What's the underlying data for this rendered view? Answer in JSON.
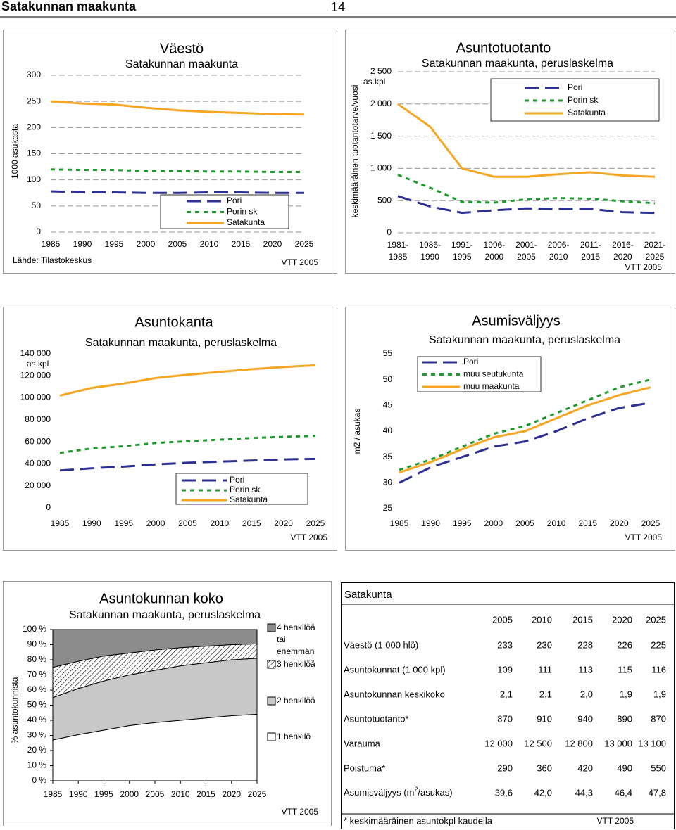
{
  "header": {
    "title": "Satakunnan maakunta",
    "page": 14
  },
  "chart_data": [
    {
      "type": "line",
      "title": "Väestö",
      "subtitle": "Satakunnan maakunta",
      "y_label": "1000 asukasta",
      "source": "Lähde: Tilastokeskus",
      "credit": "VTT 2005",
      "x": [
        1985,
        1990,
        1995,
        2000,
        2005,
        2010,
        2015,
        2020,
        2025
      ],
      "xlim": [
        1985,
        2025
      ],
      "xticks": [
        1985,
        1990,
        1995,
        2000,
        2005,
        2010,
        2015,
        2020,
        2025
      ],
      "ylim": [
        0,
        300
      ],
      "yticks": [
        0,
        50,
        100,
        150,
        200,
        250,
        300
      ],
      "grid": true,
      "legend": "lower right",
      "series": [
        {
          "name": "Pori",
          "color": "#2e3192",
          "dash": "dashed",
          "values": [
            78,
            76,
            76,
            75,
            75,
            76,
            76,
            75,
            75
          ]
        },
        {
          "name": "Porin sk",
          "color": "#1e9a2e",
          "dash": "dotted",
          "values": [
            120,
            119,
            119,
            117,
            117,
            116,
            116,
            115,
            115
          ]
        },
        {
          "name": "Satakunta",
          "color": "#f5a623",
          "dash": "solid",
          "values": [
            250,
            246,
            244,
            238,
            233,
            230,
            228,
            226,
            225
          ]
        }
      ]
    },
    {
      "type": "line",
      "title": "Asuntotuotanto",
      "subtitle": "Satakunnan maakunta, peruslaskelma",
      "y_label": "keskimääräinen tuotantotarve/vuosi",
      "unit": "as.kpl",
      "credit": "VTT 2005",
      "categories": [
        "1981-1985",
        "1986-1990",
        "1991-1995",
        "1996-2000",
        "2001-2005",
        "2006-2010",
        "2011-2015",
        "2016-2020",
        "2021-2025"
      ],
      "ylim": [
        0,
        2500
      ],
      "yticks": [
        0,
        500,
        {
          "value": 1000,
          "label": "1 000"
        },
        {
          "value": 1500,
          "label": "1 500"
        },
        {
          "value": 2000,
          "label": "2 000"
        },
        {
          "value": 2500,
          "label": "2 500"
        }
      ],
      "grid": true,
      "legend": "upper right",
      "series": [
        {
          "name": "Pori",
          "color": "#2e3192",
          "dash": "dashed",
          "values": [
            570,
            410,
            310,
            350,
            380,
            370,
            370,
            320,
            310
          ]
        },
        {
          "name": "Porin sk",
          "color": "#1e9a2e",
          "dash": "dotted",
          "values": [
            900,
            700,
            480,
            470,
            520,
            540,
            530,
            490,
            460
          ]
        },
        {
          "name": "Satakunta",
          "color": "#f5a623",
          "dash": "solid",
          "values": [
            2000,
            1650,
            1000,
            870,
            870,
            910,
            940,
            890,
            870
          ]
        }
      ]
    },
    {
      "type": "line",
      "title": "Asuntokanta",
      "subtitle": "Satakunnan maakunta, peruslaskelma",
      "unit": "as.kpl",
      "credit": "VTT 2005",
      "x": [
        1985,
        1990,
        1995,
        2000,
        2005,
        2010,
        2015,
        2020,
        2025
      ],
      "xlim": [
        1985,
        2025
      ],
      "xticks": [
        1985,
        1990,
        1995,
        2000,
        2005,
        2010,
        2015,
        2020,
        2025
      ],
      "ylim": [
        0,
        140000
      ],
      "yticks": [
        0,
        {
          "value": 20000,
          "label": "20 000"
        },
        {
          "value": 40000,
          "label": "40 000"
        },
        {
          "value": 60000,
          "label": "60 000"
        },
        {
          "value": 80000,
          "label": "80 000"
        },
        {
          "value": 100000,
          "label": "100 000"
        },
        {
          "value": 120000,
          "label": "120 000"
        },
        {
          "value": 140000,
          "label": "140 000"
        }
      ],
      "grid": false,
      "legend": "lower right",
      "series": [
        {
          "name": "Pori",
          "color": "#2e3192",
          "dash": "dashed",
          "values": [
            34000,
            36000,
            37500,
            39500,
            41000,
            42000,
            43000,
            44000,
            44500
          ]
        },
        {
          "name": "Porin sk",
          "color": "#1e9a2e",
          "dash": "dotted",
          "values": [
            50000,
            54000,
            56000,
            59000,
            60500,
            62000,
            63500,
            64500,
            65500
          ]
        },
        {
          "name": "Satakunta",
          "color": "#f5a623",
          "dash": "solid",
          "values": [
            102000,
            109000,
            113000,
            118000,
            121000,
            123500,
            126000,
            128000,
            129500
          ]
        }
      ]
    },
    {
      "type": "line",
      "title": "Asumisväljyys",
      "subtitle": "Satakunnan maakunta, peruslaskelma",
      "y_label": "m2 / asukas",
      "credit": "VTT 2005",
      "x": [
        1985,
        1990,
        1995,
        2000,
        2005,
        2010,
        2015,
        2020,
        2025
      ],
      "xlim": [
        1985,
        2025
      ],
      "xticks": [
        1985,
        1990,
        1995,
        2000,
        2005,
        2010,
        2015,
        2020,
        2025
      ],
      "ylim": [
        25,
        55
      ],
      "yticks": [
        25,
        30,
        35,
        40,
        45,
        50,
        55
      ],
      "grid": false,
      "legend": "upper left",
      "series": [
        {
          "name": "Pori",
          "color": "#2e3192",
          "dash": "dashed",
          "values": [
            30,
            33,
            35,
            37,
            38,
            40,
            42.5,
            44.5,
            45.5
          ]
        },
        {
          "name": "muu seutukunta",
          "color": "#1e9a2e",
          "dash": "dotted",
          "values": [
            32.5,
            34.5,
            37,
            39.5,
            41,
            43.5,
            46,
            48.5,
            50
          ]
        },
        {
          "name": "muu maakunta",
          "color": "#f5a623",
          "dash": "solid",
          "values": [
            32,
            34,
            36.5,
            38.8,
            40,
            42.5,
            45,
            47,
            48.5
          ]
        }
      ]
    },
    {
      "type": "stacked_area",
      "title": "Asuntokunnan koko",
      "subtitle": "Satakunnan maakunta, peruslaskelma",
      "y_label": "% asuntokunnista",
      "credit": "VTT 2005",
      "x": [
        1985,
        1990,
        1995,
        2000,
        2005,
        2010,
        2015,
        2020,
        2025
      ],
      "xlim": [
        1985,
        2025
      ],
      "xticks": [
        1985,
        1990,
        1995,
        2000,
        2005,
        2010,
        2015,
        2020,
        2025
      ],
      "ylim": [
        0,
        100
      ],
      "yticks": [
        {
          "value": 0,
          "label": "0 %"
        },
        {
          "value": 10,
          "label": "10 %"
        },
        {
          "value": 20,
          "label": "20 %"
        },
        {
          "value": 30,
          "label": "30 %"
        },
        {
          "value": 40,
          "label": "40 %"
        },
        {
          "value": 50,
          "label": "50 %"
        },
        {
          "value": 60,
          "label": "60 %"
        },
        {
          "value": 70,
          "label": "70 %"
        },
        {
          "value": 80,
          "label": "80 %"
        },
        {
          "value": 90,
          "label": "90 %"
        },
        {
          "value": 100,
          "label": "100 %"
        }
      ],
      "grid": false,
      "legend": "right",
      "series": [
        {
          "name": "1 henkilö",
          "color": "#ffffff",
          "values": [
            27,
            30.5,
            33.5,
            36.5,
            38.5,
            40,
            41.5,
            43,
            44
          ]
        },
        {
          "name": "2 henkilöä",
          "color": "#c8c8c8",
          "values": [
            28,
            30.5,
            32.5,
            33.5,
            34.5,
            36,
            36.5,
            37,
            37
          ]
        },
        {
          "name": "3 henkilöä",
          "color": "#ffffff",
          "pattern": "hatch",
          "values": [
            20,
            18,
            16.5,
            14.5,
            13.5,
            12,
            11,
            10,
            9.5
          ]
        },
        {
          "name": "4 henkilöä tai enemmän",
          "color": "#8c8c8c",
          "values": [
            25,
            21,
            17.5,
            15.5,
            13.5,
            12,
            11,
            10,
            9.5
          ]
        }
      ]
    }
  ],
  "table": {
    "title": "Satakunta",
    "columns": [
      2005,
      2010,
      2015,
      2020,
      2025
    ],
    "rows": [
      {
        "label": "Väestö (1 000 hlö)",
        "values": [
          "233",
          "230",
          "228",
          "226",
          "225"
        ]
      },
      {
        "label": "Asuntokunnat (1 000 kpl)",
        "values": [
          "109",
          "111",
          "113",
          "115",
          "116"
        ]
      },
      {
        "label": "Asuntokunnan keskikoko",
        "values": [
          "2,1",
          "2,1",
          "2,0",
          "1,9",
          "1,9"
        ]
      },
      {
        "label": "Asuntotuotanto*",
        "values": [
          "870",
          "910",
          "940",
          "890",
          "870"
        ]
      },
      {
        "label": "Varauma",
        "values": [
          "12 000",
          "12 500",
          "12 800",
          "13 000",
          "13 100"
        ]
      },
      {
        "label": "Poistuma*",
        "values": [
          "290",
          "360",
          "420",
          "490",
          "550"
        ]
      },
      {
        "label": "Asumisväljyys (m2/asukas)",
        "values": [
          "39,6",
          "42,0",
          "44,3",
          "46,4",
          "47,8"
        ]
      }
    ],
    "footnote": "* keskimääräinen asuntokpl kaudella",
    "credit": "VTT 2005"
  }
}
